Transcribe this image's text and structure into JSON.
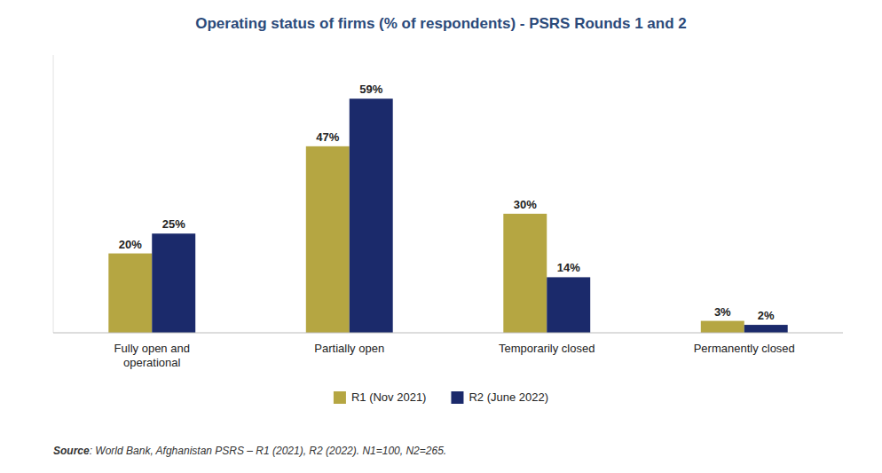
{
  "chart_data": {
    "type": "bar",
    "title": "Operating status of firms (% of respondents) - PSRS Rounds 1 and 2",
    "categories": [
      "Fully open and\noperational",
      "Partially open",
      "Temporarily closed",
      "Permanently closed"
    ],
    "series": [
      {
        "name": "R1 (Nov 2021)",
        "color": "#B5A642",
        "values": [
          20,
          47,
          30,
          3
        ],
        "value_labels": [
          "20%",
          "47%",
          "30%",
          "3%"
        ]
      },
      {
        "name": "R2 (June 2022)",
        "color": "#1B2A6B",
        "values": [
          25,
          59,
          14,
          2
        ],
        "value_labels": [
          "25%",
          "59%",
          "14%",
          "2%"
        ]
      }
    ],
    "ylim": [
      0,
      70
    ],
    "data_labels": true,
    "tick_labels": "x",
    "grid": false,
    "legend": "bottom",
    "annotations": [
      "Source",
      ": World Bank, Afghanistan PSRS – R1 (2021), R2 (2022). N1=100, N2=265."
    ]
  }
}
